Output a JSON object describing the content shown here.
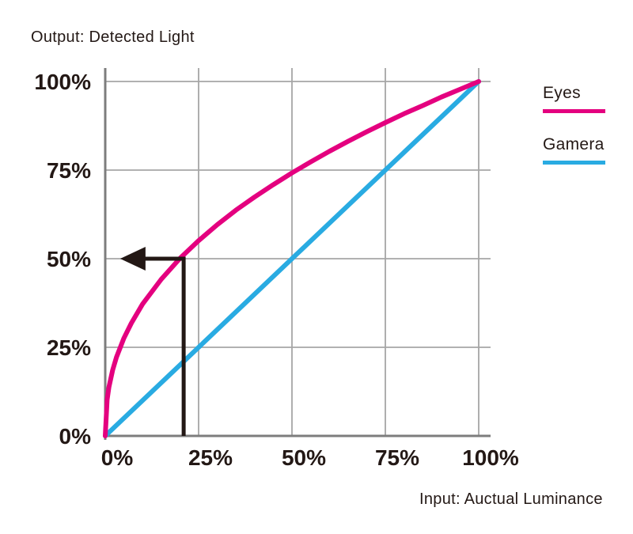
{
  "colors": {
    "background": "#ffffff",
    "text": "#231815",
    "axis": "#7d7d7d",
    "grid": "#a6a6a6",
    "eyes": "#e4007f",
    "gamera": "#29abe2",
    "annotation": "#231815"
  },
  "chart_data": {
    "type": "line",
    "title": "Output: Detected Light",
    "xlabel": "Input: Auctual Luminance",
    "ylabel": "Output: Detected Light",
    "xlim": [
      0,
      100
    ],
    "ylim": [
      0,
      100
    ],
    "grid": true,
    "legend_position": "right",
    "x_ticks": [
      "0%",
      "25%",
      "50%",
      "75%",
      "100%"
    ],
    "y_ticks": [
      "0%",
      "25%",
      "50%",
      "75%",
      "100%"
    ],
    "x_tick_values": [
      0,
      25,
      50,
      75,
      100
    ],
    "y_tick_values": [
      0,
      25,
      50,
      75,
      100
    ],
    "series": [
      {
        "name": "Eyes",
        "color": "#e4007f",
        "shape": "gamma curve, approx y = 100*(x/100)^0.43",
        "points": [
          [
            0,
            0
          ],
          [
            0.5,
            10.2
          ],
          [
            1,
            13.8
          ],
          [
            2,
            18.6
          ],
          [
            3,
            22.2
          ],
          [
            5,
            27.6
          ],
          [
            7,
            31.8
          ],
          [
            10,
            37.2
          ],
          [
            15,
            44.2
          ],
          [
            20,
            50.1
          ],
          [
            25,
            55.1
          ],
          [
            30,
            59.6
          ],
          [
            35,
            63.7
          ],
          [
            40,
            67.4
          ],
          [
            45,
            70.9
          ],
          [
            50,
            74.2
          ],
          [
            55,
            77.3
          ],
          [
            60,
            80.3
          ],
          [
            65,
            83.1
          ],
          [
            70,
            85.8
          ],
          [
            75,
            88.4
          ],
          [
            80,
            90.9
          ],
          [
            85,
            93.2
          ],
          [
            90,
            95.6
          ],
          [
            95,
            97.8
          ],
          [
            100,
            100
          ]
        ]
      },
      {
        "name": "Gamera",
        "color": "#29abe2",
        "shape": "linear",
        "points": [
          [
            0,
            0
          ],
          [
            100,
            100
          ]
        ]
      }
    ],
    "annotation": {
      "type": "arrow",
      "color": "#231815",
      "description": "at about 20% actual luminance the eyes detect about 50% light",
      "path": [
        [
          21,
          0
        ],
        [
          21,
          50
        ],
        [
          4,
          50
        ]
      ],
      "arrowhead_at": [
        4,
        50
      ],
      "arrowhead_direction": "left"
    }
  }
}
